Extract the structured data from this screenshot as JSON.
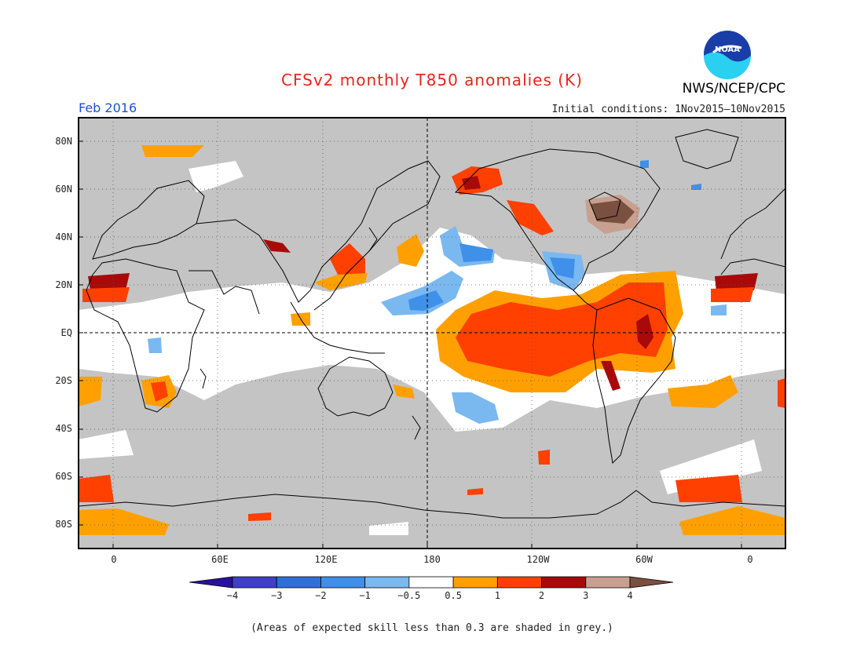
{
  "title": "CFSv2 monthly T850 anomalies (K)",
  "period": "Feb 2016",
  "initial_conditions": "Initial conditions: 1Nov2015–10Nov2015",
  "agency": "NWS/NCEP/CPC",
  "logo_text": "NOAA",
  "lat_labels": [
    "80N",
    "60N",
    "40N",
    "20N",
    "EQ",
    "20S",
    "40S",
    "60S",
    "80S"
  ],
  "lat_values": [
    80,
    60,
    40,
    20,
    0,
    -20,
    -40,
    -60,
    -80
  ],
  "lon_labels": [
    "0",
    "60E",
    "120E",
    "180",
    "120W",
    "60W",
    "0"
  ],
  "lon_values": [
    0,
    60,
    120,
    180,
    240,
    300,
    360
  ],
  "map_extent": {
    "lon_min": -20,
    "lon_max": 380,
    "lat_min": -90,
    "lat_max": 90
  },
  "colorbar": {
    "labels": [
      "−4",
      "−3",
      "−2",
      "−1",
      "−0.5",
      "0.5",
      "1",
      "2",
      "3",
      "4"
    ],
    "colors": [
      "#2a0fa0",
      "#3f3fc8",
      "#2f6fd8",
      "#3f90e8",
      "#7ab8f0",
      "#ffffff",
      "#ffa000",
      "#ff4000",
      "#a80a0a",
      "#c8a090",
      "#7a5040"
    ]
  },
  "skill_mask_color": "#c4c4c4",
  "footnote": "(Areas of expected skill less than 0.3 are shaded in grey.)"
}
